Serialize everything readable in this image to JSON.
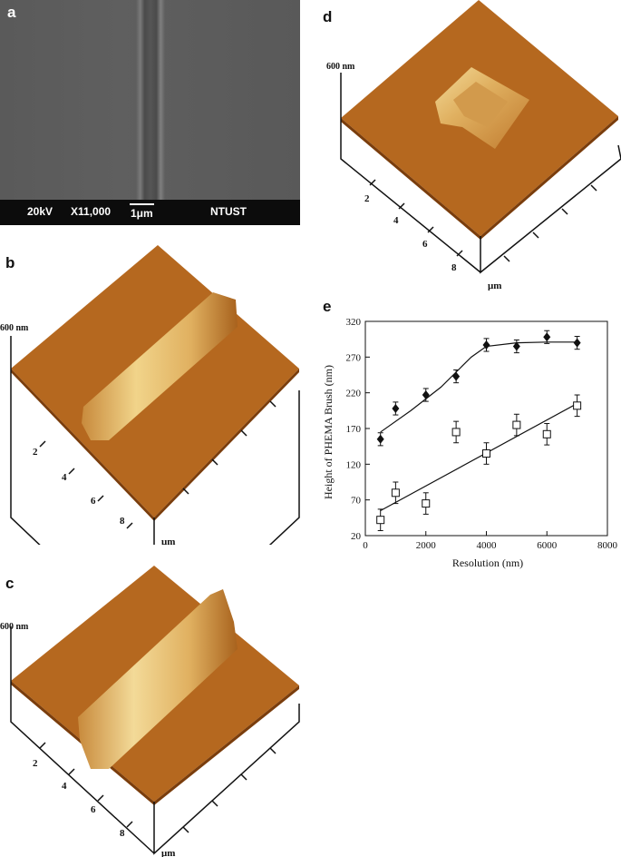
{
  "sem": {
    "letter": "a",
    "voltage": "20kV",
    "magnification": "X11,000",
    "scale": "1μm",
    "label": "NTUST"
  },
  "afm_b": {
    "letter": "b",
    "z_label": "600 nm",
    "ticks": [
      "2",
      "4",
      "6",
      "8"
    ],
    "unit": "μm"
  },
  "afm_c": {
    "letter": "c",
    "z_label": "600 nm",
    "ticks": [
      "2",
      "4",
      "6",
      "8"
    ],
    "unit": "μm"
  },
  "afm_d": {
    "letter": "d",
    "z_label": "600 nm",
    "ticks": [
      "2",
      "4",
      "6",
      "8"
    ],
    "unit": "μm"
  },
  "colors": {
    "afm_dark": "#8a4a10",
    "afm_mid": "#b5681f",
    "afm_high": "#f1d48a"
  },
  "chart_data": {
    "letter": "e",
    "type": "scatter",
    "xlabel": "Resolution (nm)",
    "ylabel": "Height of PHEMA Brush (nm)",
    "xlim": [
      0,
      8000
    ],
    "ylim": [
      20,
      320
    ],
    "xticks": [
      0,
      2000,
      4000,
      6000,
      8000
    ],
    "yticks": [
      20,
      70,
      120,
      170,
      220,
      270,
      320
    ],
    "series": [
      {
        "marker": "filled-diamond",
        "x": [
          500,
          1000,
          2000,
          3000,
          4000,
          5000,
          6000,
          7000
        ],
        "y": [
          155,
          198,
          217,
          243,
          287,
          285,
          298,
          290
        ],
        "err": [
          9,
          9,
          9,
          9,
          9,
          9,
          9,
          9
        ],
        "fit": [
          [
            500,
            165
          ],
          [
            1500,
            195
          ],
          [
            2500,
            228
          ],
          [
            3500,
            270
          ],
          [
            4000,
            285
          ],
          [
            5000,
            290
          ],
          [
            6000,
            291
          ],
          [
            7000,
            291
          ]
        ]
      },
      {
        "marker": "open-square",
        "x": [
          500,
          1000,
          2000,
          3000,
          4000,
          5000,
          6000,
          7000
        ],
        "y": [
          42,
          80,
          65,
          165,
          135,
          175,
          162,
          202
        ],
        "err": [
          15,
          15,
          15,
          15,
          15,
          15,
          15,
          15
        ],
        "fit": [
          [
            500,
            55
          ],
          [
            7000,
            205
          ]
        ]
      }
    ]
  }
}
